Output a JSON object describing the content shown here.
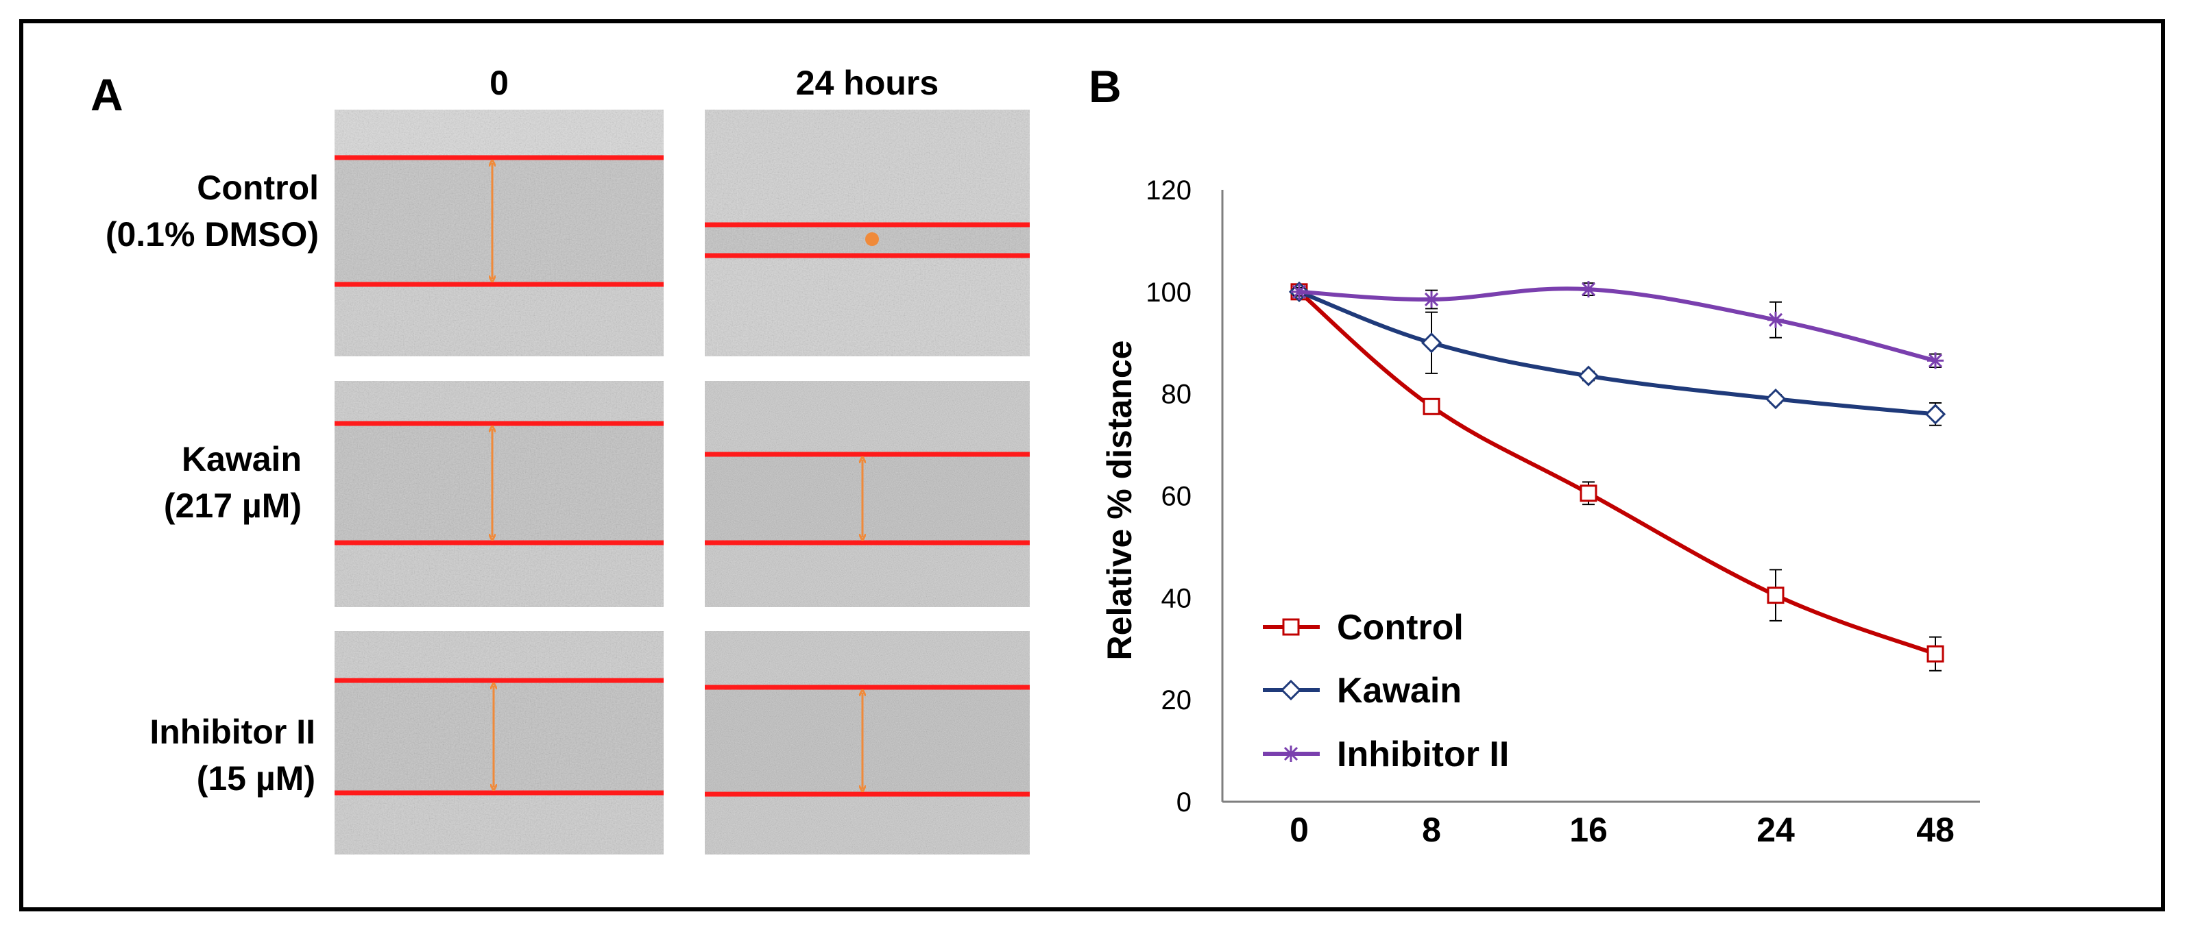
{
  "colors": {
    "scratch_line": "#ff1a1a",
    "arrow": "#f08a3a",
    "control": "#c00000",
    "kawain": "#1f3a7a",
    "inhibitor": "#7a3fae",
    "axis": "#7f7f7f"
  },
  "panel_a": {
    "letter": "A",
    "time_headers": [
      "0",
      "24 hours"
    ],
    "rows": [
      {
        "label_line1": "Control",
        "label_line2": "(0.1% DMSO)"
      },
      {
        "label_line1": "Kawain",
        "label_line2": "(217 µM)"
      },
      {
        "label_line1": "Inhibitor II",
        "label_line2": "(15 µM)"
      }
    ]
  },
  "panel_b": {
    "letter": "B"
  },
  "chart_data": {
    "type": "line",
    "title": "",
    "xlabel": "",
    "ylabel": "Relative % distance",
    "categories": [
      "0",
      "8",
      "16",
      "24",
      "48"
    ],
    "ylim": [
      0,
      120
    ],
    "yticks": [
      0,
      20,
      40,
      60,
      80,
      100,
      120
    ],
    "grid": false,
    "legend_position": "bottom-left",
    "series": [
      {
        "name": "Control",
        "marker": "square",
        "color": "#c00000",
        "values": [
          100,
          77.5,
          60.5,
          40.5,
          29
        ],
        "errors": [
          0.8,
          1.2,
          2.2,
          5,
          3.3
        ]
      },
      {
        "name": "Kawain",
        "marker": "diamond",
        "color": "#1f3a7a",
        "values": [
          100,
          90,
          83.5,
          79,
          76
        ],
        "errors": [
          0.8,
          6,
          0.9,
          0.8,
          2.2
        ]
      },
      {
        "name": "Inhibitor II",
        "marker": "star",
        "color": "#7a3fae",
        "values": [
          100,
          98.5,
          100.5,
          94.5,
          86.5
        ],
        "errors": [
          0.8,
          1.8,
          1.2,
          3.5,
          1.3
        ]
      }
    ]
  }
}
